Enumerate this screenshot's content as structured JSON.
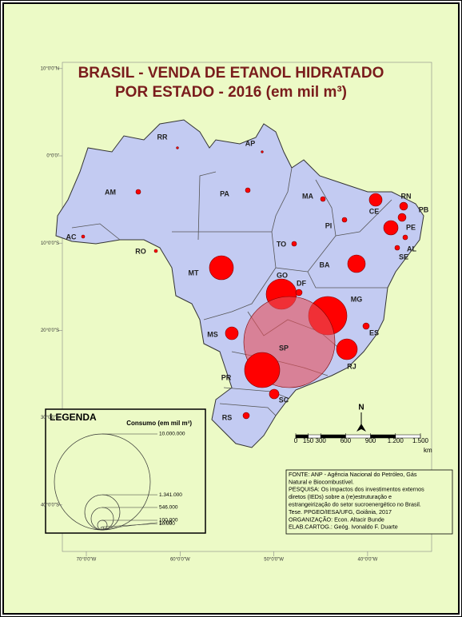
{
  "title": [
    "BRASIL - VENDA DE ETANOL HIDRATADO",
    "POR ESTADO - 2016 (em mil m³)"
  ],
  "axes": {
    "lat_ticks": [
      {
        "value": 10,
        "label": "10°0'0\"N"
      },
      {
        "value": 0,
        "label": "0°0'0\""
      },
      {
        "value": -10,
        "label": "10°0'0\"S"
      },
      {
        "value": -20,
        "label": "20°0'0\"S"
      },
      {
        "value": -30,
        "label": "30°0'0\"S"
      },
      {
        "value": -40,
        "label": "40°0'0\"S"
      }
    ],
    "lon_ticks": [
      {
        "value": -70,
        "label": "70°0'0\"W"
      },
      {
        "value": -60,
        "label": "60°0'0\"W"
      },
      {
        "value": -50,
        "label": "50°0'0\"W"
      },
      {
        "value": -40,
        "label": "40°0'0\"W"
      }
    ]
  },
  "states": [
    {
      "label": "RR",
      "consumption": 5000
    },
    {
      "label": "AP",
      "consumption": 5000
    },
    {
      "label": "AM",
      "consumption": 25000
    },
    {
      "label": "PA",
      "consumption": 25000
    },
    {
      "label": "MA",
      "consumption": 25000
    },
    {
      "label": "PI",
      "consumption": 25000
    },
    {
      "label": "CE",
      "consumption": 178000
    },
    {
      "label": "RN",
      "consumption": 69000
    },
    {
      "label": "PB",
      "consumption": 69000
    },
    {
      "label": "PE",
      "consumption": 225000
    },
    {
      "label": "AL",
      "consumption": 25000
    },
    {
      "label": "SE",
      "consumption": 25000
    },
    {
      "label": "BA",
      "consumption": 336000
    },
    {
      "label": "TO",
      "consumption": 25000
    },
    {
      "label": "AC",
      "consumption": 11000
    },
    {
      "label": "RO",
      "consumption": 11000
    },
    {
      "label": "MT",
      "consumption": 625000
    },
    {
      "label": "GO",
      "consumption": 1003000
    },
    {
      "label": "DF",
      "consumption": 44000
    },
    {
      "label": "MG",
      "consumption": 1600000
    },
    {
      "label": "ES",
      "consumption": 44000
    },
    {
      "label": "MS",
      "consumption": 178000
    },
    {
      "label": "SP",
      "consumption": 9025000
    },
    {
      "label": "RJ",
      "consumption": 469000
    },
    {
      "label": "PR",
      "consumption": 1344000
    },
    {
      "label": "SC",
      "consumption": 100000
    },
    {
      "label": "RS",
      "consumption": 44000
    }
  ],
  "legend": {
    "title": "LEGENDA",
    "subtitle": "Consumo (em mil m³)",
    "sizes": [
      {
        "value": 10000000,
        "label": "10.000.000"
      },
      {
        "value": 1341000,
        "label": "1.341.000"
      },
      {
        "value": 546000,
        "label": "546.000"
      },
      {
        "value": 100000,
        "label": "100.000"
      },
      {
        "value": 10000,
        "label": "10.000"
      },
      {
        "value": 1000,
        "label": "1.000"
      }
    ]
  },
  "scale_bar": {
    "ticks": [
      0,
      150,
      300,
      600,
      900,
      {
        "value": 1200,
        "label": "1.200"
      },
      {
        "value": 1500,
        "label": "1.500"
      }
    ],
    "unit": "km"
  },
  "north": "N",
  "source": [
    "FONTE:  ANP - Agência Nacional do Petróleo, Gás",
    "Natural e Biocombustível.",
    "PESQUISA:  Os impactos dos investimentos externos",
    "diretos (IEDs) sobre a (re)estruturação  e",
    "estrangeirização do setor sucroenergético no Brasil.",
    "Tese. PPGEO/IESA/UFG, Goiânia, 2017",
    "ORGANIZAÇÃO:  Econ. Altacir Bunde",
    "ELAB.CARTOG.:  Geóg. Ivonaldo  F. Duarte"
  ]
}
